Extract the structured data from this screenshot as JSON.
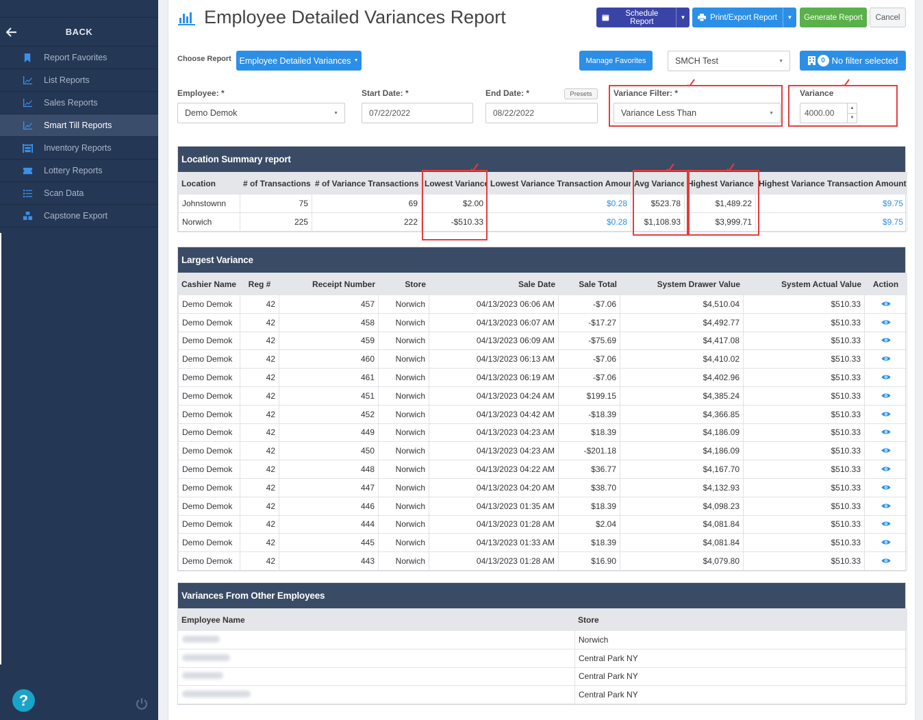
{
  "sidebar": {
    "back_label": "BACK",
    "items": [
      {
        "label": "Report Favorites",
        "icon": "bookmark-icon"
      },
      {
        "label": "List Reports",
        "icon": "line-chart-icon"
      },
      {
        "label": "Sales Reports",
        "icon": "line-chart-icon"
      },
      {
        "label": "Smart Till Reports",
        "icon": "line-chart-icon"
      },
      {
        "label": "Inventory Reports",
        "icon": "warehouse-icon"
      },
      {
        "label": "Lottery Reports",
        "icon": "ticket-icon"
      },
      {
        "label": "Scan Data",
        "icon": "list-icon"
      },
      {
        "label": "Capstone Export",
        "icon": "cubes-icon"
      }
    ],
    "active_index": 3
  },
  "header": {
    "title": "Employee Detailed Variances Report",
    "schedule_label": "Schedule Report",
    "print_label": "Print/Export Report",
    "generate_label": "Generate Report",
    "cancel_label": "Cancel"
  },
  "controls": {
    "choose_label": "Choose Report",
    "report_selected": "Employee Detailed Variances",
    "manage_favorites": "Manage Favorites",
    "store_selected": "SMCH Test",
    "filter_count": "0",
    "filter_label": "No filter selected"
  },
  "filters": {
    "employee_label": "Employee: *",
    "employee_value": "Demo Demok",
    "start_label": "Start Date: *",
    "start_value": "07/22/2022",
    "end_label": "End Date: *",
    "end_value": "08/22/2022",
    "presets_label": "Presets",
    "variance_filter_label": "Variance Filter: *",
    "variance_filter_value": "Variance Less Than",
    "variance_label": "Variance",
    "variance_value": "4000.00"
  },
  "location_summary": {
    "title": "Location Summary report",
    "columns": [
      "Location",
      "# of Transactions",
      "# of Variance Transactions",
      "Lowest Variance",
      "Lowest Variance Transaction Amount",
      "Avg Variance",
      "Highest Variance",
      "Highest Variance Transaction Amount"
    ],
    "rows": [
      [
        "Johnstownn",
        "75",
        "69",
        "$2.00",
        "$0.28",
        "$523.78",
        "$1,489.22",
        "$9.75"
      ],
      [
        "Norwich",
        "225",
        "222",
        "-$510.33",
        "$0.28",
        "$1,108.93",
        "$3,999.71",
        "$9.75"
      ]
    ]
  },
  "largest_variance": {
    "title": "Largest Variance",
    "columns": [
      "Cashier Name",
      "Reg #",
      "Receipt Number",
      "Store",
      "Sale Date",
      "Sale Total",
      "System Drawer Value",
      "System Actual Value",
      "Action"
    ],
    "rows": [
      [
        "Demo Demok",
        "42",
        "457",
        "Norwich",
        "04/13/2023 06:06 AM",
        "-$7.06",
        "$4,510.04",
        "$510.33"
      ],
      [
        "Demo Demok",
        "42",
        "458",
        "Norwich",
        "04/13/2023 06:07 AM",
        "-$17.27",
        "$4,492.77",
        "$510.33"
      ],
      [
        "Demo Demok",
        "42",
        "459",
        "Norwich",
        "04/13/2023 06:09 AM",
        "-$75.69",
        "$4,417.08",
        "$510.33"
      ],
      [
        "Demo Demok",
        "42",
        "460",
        "Norwich",
        "04/13/2023 06:13 AM",
        "-$7.06",
        "$4,410.02",
        "$510.33"
      ],
      [
        "Demo Demok",
        "42",
        "461",
        "Norwich",
        "04/13/2023 06:19 AM",
        "-$7.06",
        "$4,402.96",
        "$510.33"
      ],
      [
        "Demo Demok",
        "42",
        "451",
        "Norwich",
        "04/13/2023 04:24 AM",
        "$199.15",
        "$4,385.24",
        "$510.33"
      ],
      [
        "Demo Demok",
        "42",
        "452",
        "Norwich",
        "04/13/2023 04:42 AM",
        "-$18.39",
        "$4,366.85",
        "$510.33"
      ],
      [
        "Demo Demok",
        "42",
        "449",
        "Norwich",
        "04/13/2023 04:23 AM",
        "$18.39",
        "$4,186.09",
        "$510.33"
      ],
      [
        "Demo Demok",
        "42",
        "450",
        "Norwich",
        "04/13/2023 04:23 AM",
        "-$201.18",
        "$4,186.09",
        "$510.33"
      ],
      [
        "Demo Demok",
        "42",
        "448",
        "Norwich",
        "04/13/2023 04:22 AM",
        "$36.77",
        "$4,167.70",
        "$510.33"
      ],
      [
        "Demo Demok",
        "42",
        "447",
        "Norwich",
        "04/13/2023 04:20 AM",
        "$38.70",
        "$4,132.93",
        "$510.33"
      ],
      [
        "Demo Demok",
        "42",
        "446",
        "Norwich",
        "04/13/2023 01:35 AM",
        "$18.39",
        "$4,098.23",
        "$510.33"
      ],
      [
        "Demo Demok",
        "42",
        "444",
        "Norwich",
        "04/13/2023 01:28 AM",
        "$2.04",
        "$4,081.84",
        "$510.33"
      ],
      [
        "Demo Demok",
        "42",
        "445",
        "Norwich",
        "04/13/2023 01:33 AM",
        "$18.39",
        "$4,081.84",
        "$510.33"
      ],
      [
        "Demo Demok",
        "42",
        "443",
        "Norwich",
        "04/13/2023 01:28 AM",
        "$16.90",
        "$4,079.80",
        "$510.33"
      ]
    ]
  },
  "other_employees": {
    "title": "Variances From Other Employees",
    "columns": [
      "Employee Name",
      "Store"
    ],
    "stores": [
      "Norwich",
      "Central Park NY",
      "Central Park NY",
      "Central Park NY"
    ]
  },
  "colors": {
    "sidebar_bg": "#243754",
    "panel_header": "#3a4b66",
    "primary": "#2b8fe8",
    "schedule": "#3a44a8",
    "generate": "#5ab04b",
    "highlight": "#e53c3c"
  }
}
